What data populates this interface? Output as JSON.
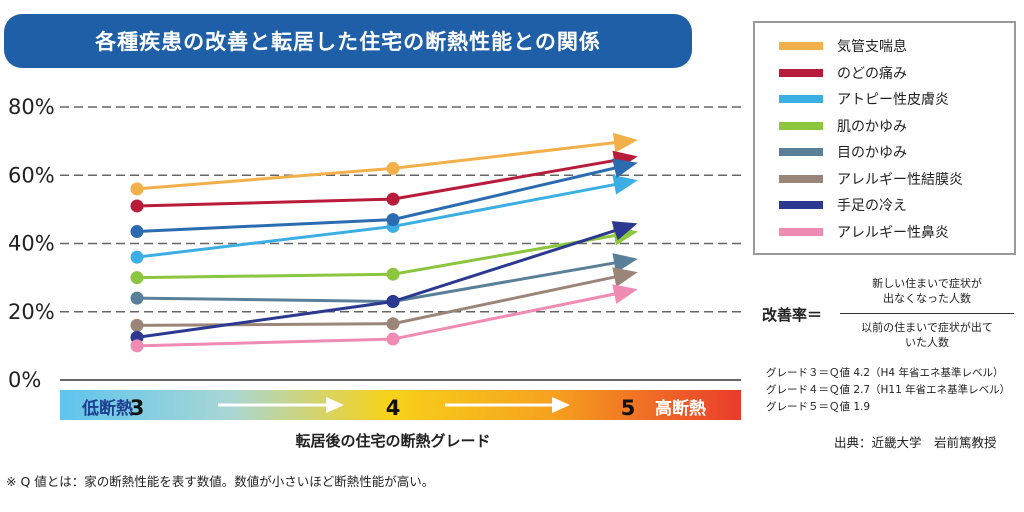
{
  "title": "各種疾患の改善と転居した住宅の断熱性能との関係",
  "legend": [
    {
      "label": "気管支喘息",
      "color": "#f2b04a"
    },
    {
      "label": "のどの痛み",
      "color": "#b81c3a"
    },
    {
      "label": "アトピー性皮膚炎",
      "color": "#3baee3"
    },
    {
      "label": "肌のかゆみ",
      "color": "#8cc63f"
    },
    {
      "label": "目のかゆみ",
      "color": "#5a8099"
    },
    {
      "label": "アレルギー性結膜炎",
      "color": "#9b8478"
    },
    {
      "label": "手足の冷え",
      "color": "#2b3990"
    },
    {
      "label": "アレルギー性鼻炎",
      "color": "#f08cb4"
    }
  ],
  "formula": {
    "label": "改善率＝",
    "numerator_line1": "新しい住まいで症状が",
    "numerator_line2": "出なくなった人数",
    "denominator_line1": "以前の住まいで症状が出て",
    "denominator_line2": "いた人数"
  },
  "grades": {
    "g3": "グレード３＝Ｑ値 4.2（H4 年省エネ基準レベル）",
    "g4": "グレード４＝Ｑ値 2.7（H11 年省エネ基準レベル）",
    "g5": "グレード５＝Ｑ値 1.9"
  },
  "source": "出典：近畿大学　岩前篤教授",
  "footnote": "※ Q 値とは：家の断熱性能を表す数値。数値が小さいほど断熱性能が高い。",
  "chart_data": {
    "type": "line",
    "x": [
      3,
      4,
      5
    ],
    "tick_labels": [
      "3",
      "4",
      "5"
    ],
    "xlabel": "転居後の住宅の断熱グレード",
    "low_label": "低断熱",
    "high_label": "高断熱",
    "ylim": [
      0,
      80
    ],
    "yticks": [
      0,
      20,
      40,
      60,
      80
    ],
    "ytick_labels": [
      "0%",
      "20%",
      "40%",
      "60%",
      "80%"
    ],
    "grid": true,
    "legend_position": "top-right",
    "series": [
      {
        "name": "気管支喘息",
        "color": "#f2b04a",
        "values": [
          56,
          62,
          70
        ]
      },
      {
        "name": "のどの痛み",
        "color": "#b81c3a",
        "values": [
          51,
          53,
          65
        ]
      },
      {
        "name": "アトピー性皮膚炎",
        "color": "#3baee3",
        "values": [
          36,
          45,
          58
        ]
      },
      {
        "name": "肌のかゆみ",
        "color": "#8cc63f",
        "values": [
          30,
          31,
          43
        ]
      },
      {
        "name": "目のかゆみ",
        "color": "#5a8099",
        "values": [
          24,
          23,
          35
        ]
      },
      {
        "name": "アレルギー性結膜炎",
        "color": "#9b8478",
        "values": [
          16,
          16.5,
          31
        ]
      },
      {
        "name": "手足の冷え",
        "color": "#2b3990",
        "values": [
          12.5,
          23,
          45
        ]
      },
      {
        "name": "アレルギー性鼻炎",
        "color": "#f08cb4",
        "values": [
          10,
          12,
          26
        ]
      },
      {
        "name": "",
        "color": "#2b6cb0",
        "values": [
          43.5,
          47,
          63
        ]
      }
    ]
  }
}
